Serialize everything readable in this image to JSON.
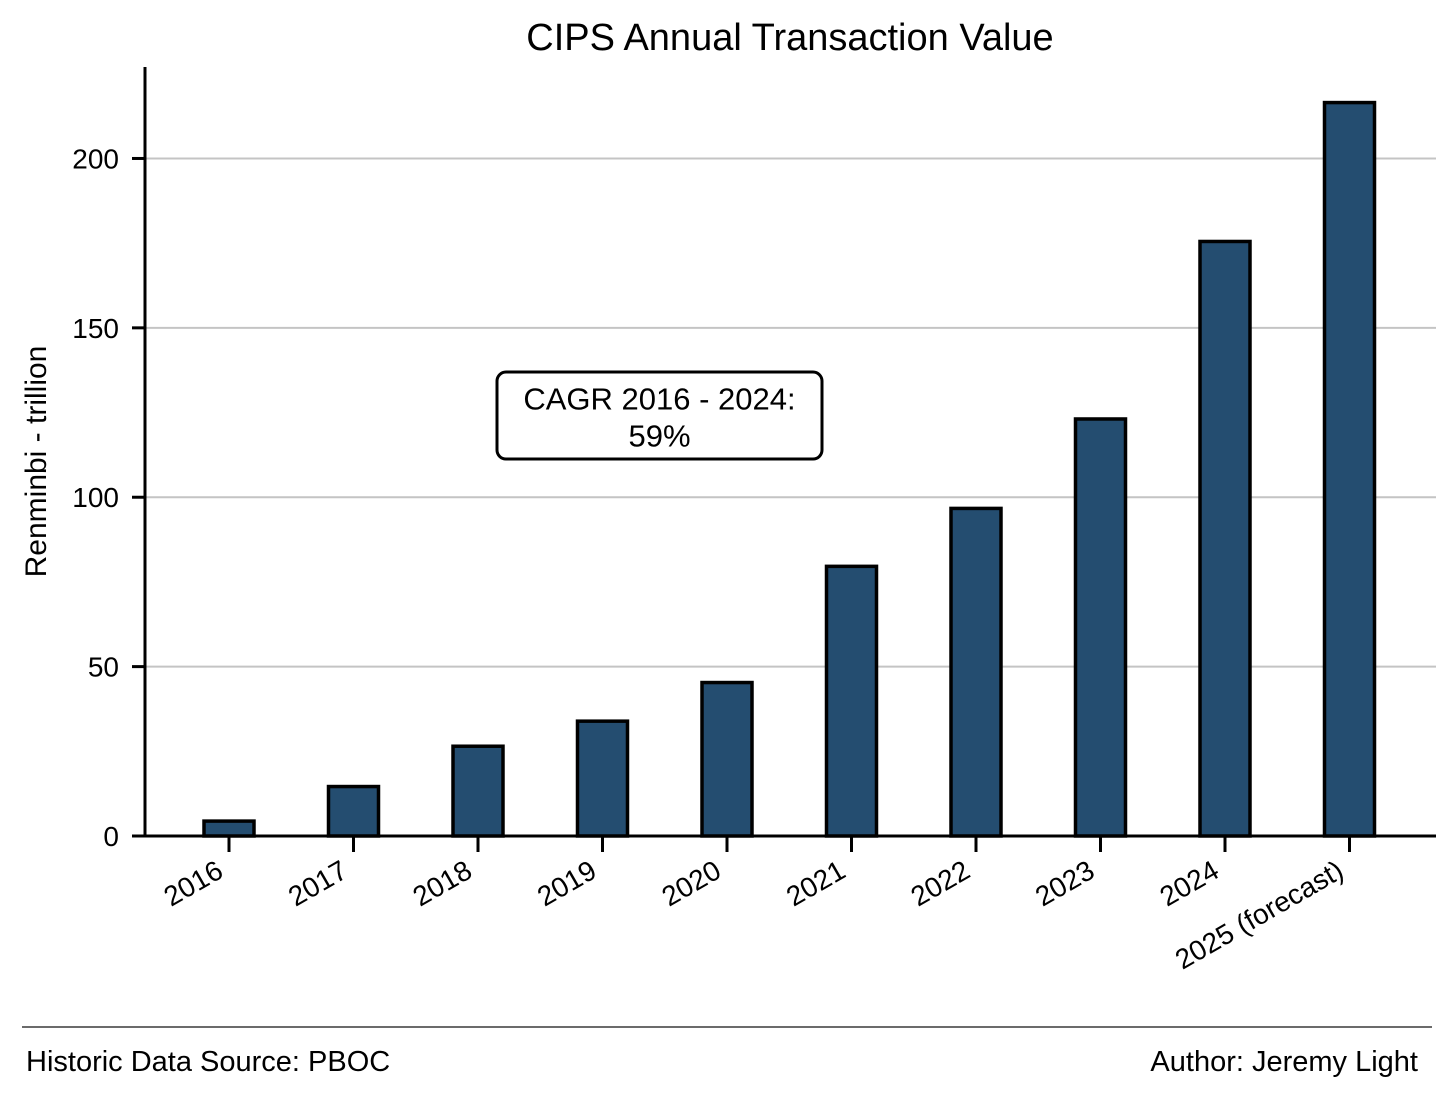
{
  "chart_data": {
    "type": "bar",
    "title": "CIPS Annual Transaction Value",
    "xlabel": "",
    "ylabel": "Renminbi - trillion",
    "categories": [
      "2016",
      "2017",
      "2018",
      "2019",
      "2020",
      "2021",
      "2022",
      "2023",
      "2024",
      "2025 (forecast)"
    ],
    "values": [
      4.4,
      14.6,
      26.5,
      33.9,
      45.3,
      79.6,
      96.7,
      123.1,
      175.5,
      216.5
    ],
    "ylim": [
      0,
      227
    ],
    "yticks": [
      0,
      50,
      100,
      150,
      200
    ],
    "grid": "horizontal",
    "bar_color": "#244d70",
    "annotation": {
      "line1": "CAGR 2016 - 2024:",
      "line2": "59%",
      "anchor_x_category": "2019",
      "anchor_y_value": 125
    }
  },
  "footer": {
    "source": "Historic Data Source: PBOC",
    "author": "Author: Jeremy Light"
  }
}
